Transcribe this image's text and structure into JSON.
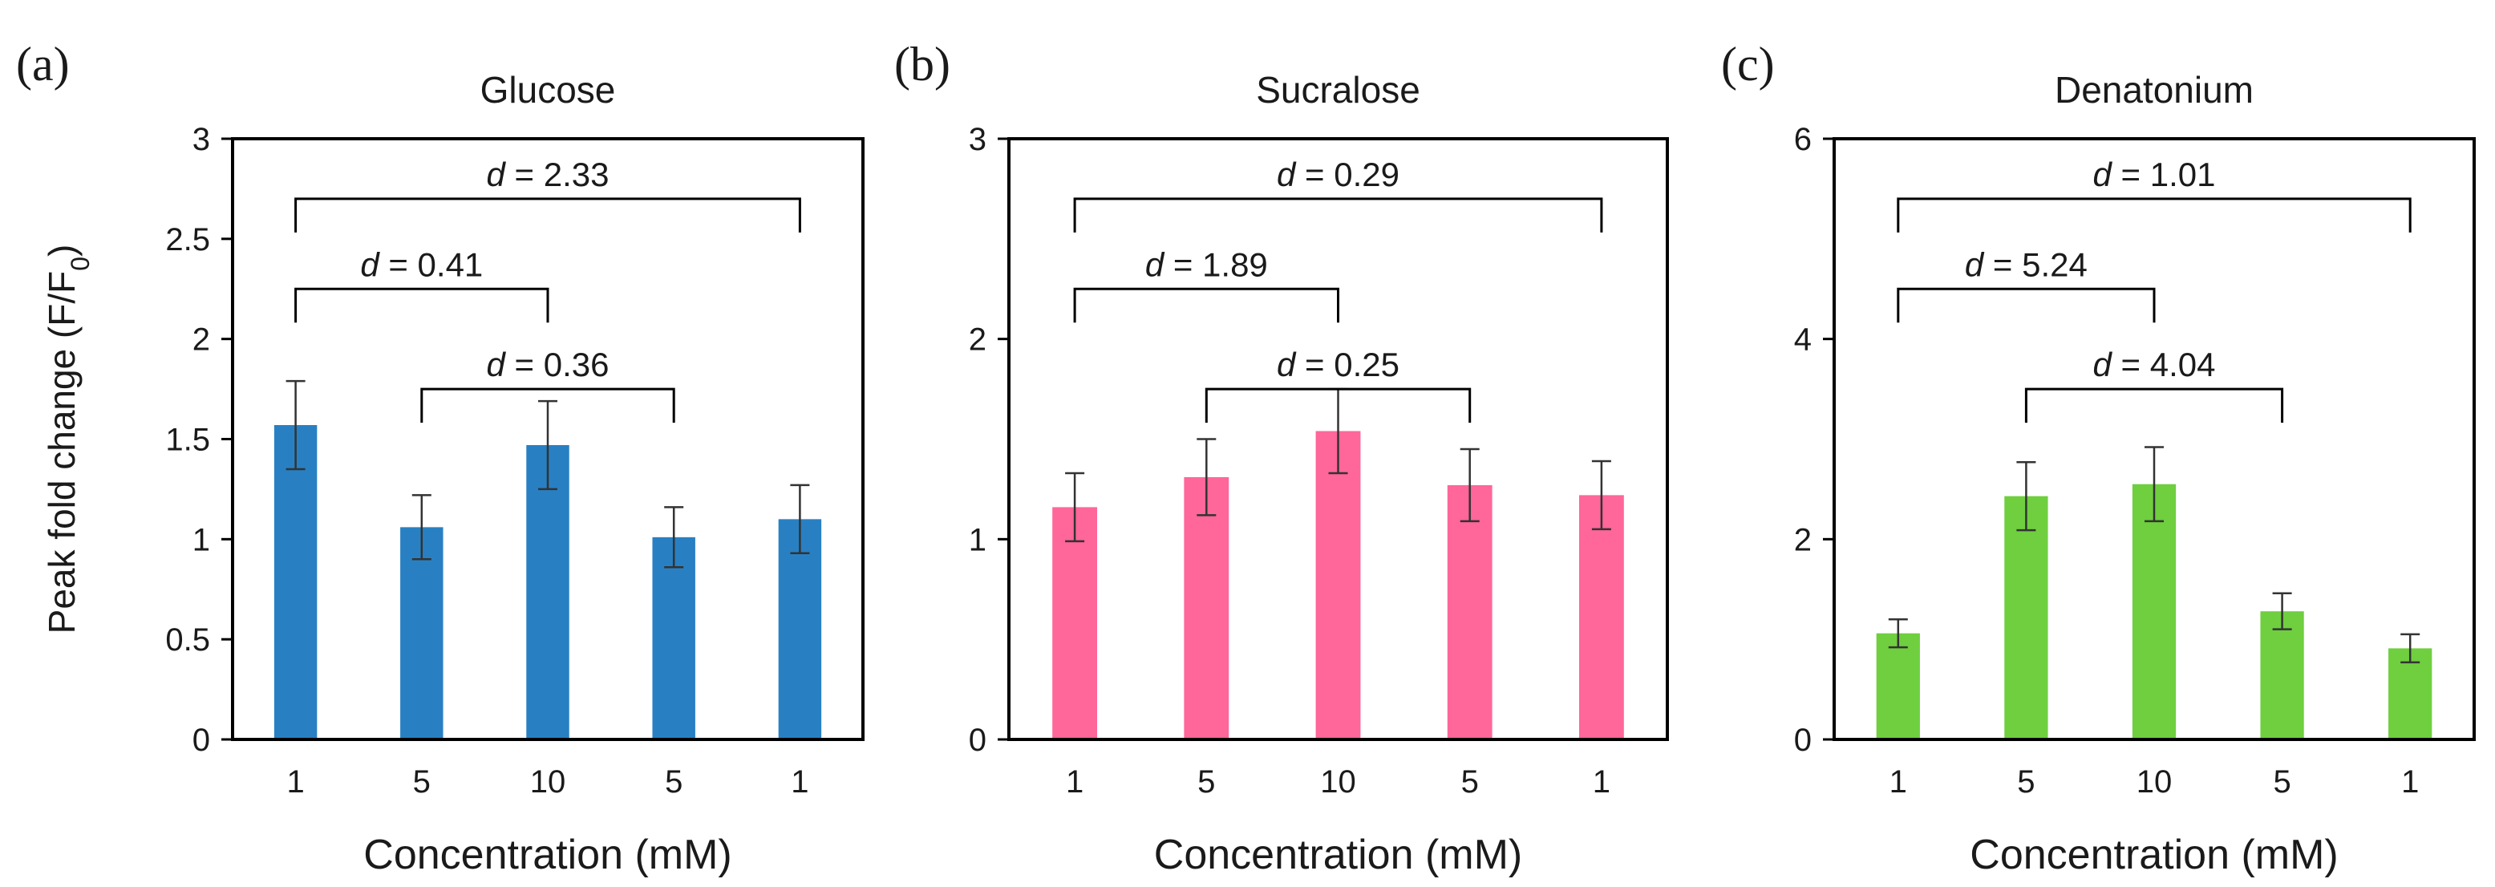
{
  "chart_data": [
    {
      "type": "bar",
      "panel_label": "(a)",
      "title": "Glucose",
      "xlabel": "Concentration (mM)",
      "ylabel": "Peak fold change (F/F",
      "ylabel_sub": "0",
      "ylabel_close": ")",
      "categories": [
        "1",
        "5",
        "10",
        "5",
        "1"
      ],
      "values": [
        1.57,
        1.06,
        1.47,
        1.01,
        1.1
      ],
      "errors": [
        0.22,
        0.16,
        0.22,
        0.15,
        0.17
      ],
      "ylim": [
        0,
        3
      ],
      "yticks": [
        0,
        0.5,
        1,
        1.5,
        2,
        2.5,
        3
      ],
      "ytick_labels": [
        "0",
        "0.5",
        "1",
        "1.5",
        "2",
        "2.5",
        "3"
      ],
      "color": "#2880c3",
      "annotations": [
        {
          "from": 0,
          "to": 4,
          "y": 2.7,
          "label_prefix": "d",
          "label_value": " = 2.33"
        },
        {
          "from": 0,
          "to": 2,
          "y": 2.25,
          "label_prefix": "d",
          "label_value": " = 0.41"
        },
        {
          "from": 1,
          "to": 3,
          "y": 1.75,
          "label_prefix": "d",
          "label_value": " = 0.36"
        }
      ]
    },
    {
      "type": "bar",
      "panel_label": "(b)",
      "title": "Sucralose",
      "xlabel": "Concentration (mM)",
      "categories": [
        "1",
        "5",
        "10",
        "5",
        "1"
      ],
      "values": [
        1.16,
        1.31,
        1.54,
        1.27,
        1.22
      ],
      "errors": [
        0.17,
        0.19,
        0.21,
        0.18,
        0.17
      ],
      "ylim": [
        0,
        3
      ],
      "yticks": [
        0,
        1,
        2,
        3
      ],
      "ytick_labels": [
        "0",
        "1",
        "2",
        "3"
      ],
      "color": "#ff6699",
      "annotations": [
        {
          "from": 0,
          "to": 4,
          "y": 2.7,
          "label_prefix": "d",
          "label_value": " = 0.29"
        },
        {
          "from": 0,
          "to": 2,
          "y": 2.25,
          "label_prefix": "d",
          "label_value": " = 1.89"
        },
        {
          "from": 1,
          "to": 3,
          "y": 1.75,
          "label_prefix": "d",
          "label_value": " = 0.25"
        }
      ]
    },
    {
      "type": "bar",
      "panel_label": "(c)",
      "title": "Denatonium",
      "xlabel": "Concentration (mM)",
      "categories": [
        "1",
        "5",
        "10",
        "5",
        "1"
      ],
      "values": [
        1.06,
        2.43,
        2.55,
        1.28,
        0.91
      ],
      "errors": [
        0.14,
        0.34,
        0.37,
        0.18,
        0.14
      ],
      "ylim": [
        0,
        6
      ],
      "yticks": [
        0,
        2,
        4,
        6
      ],
      "ytick_labels": [
        "0",
        "2",
        "4",
        "6"
      ],
      "color": "#6fcf3f",
      "annotations": [
        {
          "from": 0,
          "to": 4,
          "y": 5.4,
          "label_prefix": "d",
          "label_value": " = 1.01"
        },
        {
          "from": 0,
          "to": 2,
          "y": 4.5,
          "label_prefix": "d",
          "label_value": " = 5.24"
        },
        {
          "from": 1,
          "to": 3,
          "y": 3.5,
          "label_prefix": "d",
          "label_value": " = 4.04"
        }
      ]
    }
  ]
}
